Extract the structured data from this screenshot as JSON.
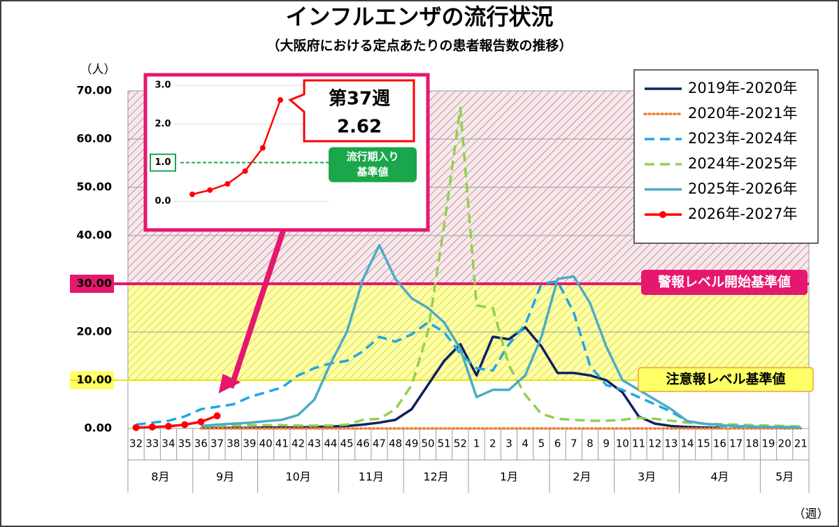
{
  "chart_data": {
    "type": "line",
    "title": "インフルエンザの流行状況",
    "subtitle": "（大阪府における定点あたりの患者報告数の推移）",
    "y_unit": "（人）",
    "x_unit": "（週）",
    "categories": [
      "32",
      "33",
      "34",
      "35",
      "36",
      "37",
      "38",
      "39",
      "40",
      "41",
      "42",
      "43",
      "44",
      "45",
      "46",
      "47",
      "48",
      "49",
      "50",
      "51",
      "52",
      "1",
      "2",
      "3",
      "4",
      "5",
      "6",
      "7",
      "8",
      "9",
      "10",
      "11",
      "12",
      "13",
      "14",
      "15",
      "16",
      "17",
      "18",
      "19",
      "20",
      "21"
    ],
    "x_groups": [
      {
        "label": "8月",
        "count": 4
      },
      {
        "label": "9月",
        "count": 4
      },
      {
        "label": "10月",
        "count": 5
      },
      {
        "label": "11月",
        "count": 4
      },
      {
        "label": "12月",
        "count": 4
      },
      {
        "label": "1月",
        "count": 5
      },
      {
        "label": "2月",
        "count": 4
      },
      {
        "label": "3月",
        "count": 4
      },
      {
        "label": "4月",
        "count": 5
      },
      {
        "label": "5月",
        "count": 3
      }
    ],
    "ylim": [
      0,
      70
    ],
    "yticks": [
      {
        "value": 0,
        "label": "0.00"
      },
      {
        "value": 10,
        "label": "10.00"
      },
      {
        "value": 20,
        "label": "20.00"
      },
      {
        "value": 30,
        "label": "30.00"
      },
      {
        "value": 40,
        "label": "40.00"
      },
      {
        "value": 50,
        "label": "50.00"
      },
      {
        "value": 60,
        "label": "60.00"
      },
      {
        "value": 70,
        "label": "70.00"
      }
    ],
    "grid": true,
    "legend": "top-right",
    "thresholds": [
      {
        "value": 30,
        "label": "警報レベル開始基準値",
        "color": "#e6176e"
      },
      {
        "value": 10,
        "label": "注意報レベル基準値",
        "color": "#ffff66"
      }
    ],
    "series": [
      {
        "name": "2019年-2020年",
        "color": "#0f2160",
        "dash": "solid",
        "values": [
          null,
          null,
          null,
          null,
          0.1,
          0.1,
          0.1,
          0.1,
          0.2,
          0.2,
          0.2,
          0.3,
          0.4,
          0.5,
          0.8,
          1.2,
          1.8,
          4,
          9,
          14,
          17.5,
          11,
          19,
          18.5,
          21,
          17,
          11.5,
          11.5,
          11,
          10,
          7.5,
          2.5,
          1,
          0.5,
          0.3,
          0.2,
          0.1,
          null,
          null,
          null,
          null,
          null
        ]
      },
      {
        "name": "2020年-2021年",
        "color": "#ed7d31",
        "dash": "dotted",
        "values": [
          null,
          null,
          null,
          null,
          0,
          0,
          0,
          0,
          0,
          0,
          0,
          0,
          0,
          0,
          0,
          0,
          0,
          0,
          0,
          0,
          0,
          0,
          0,
          0,
          0,
          0,
          0,
          0,
          0,
          0,
          0,
          0,
          0,
          0,
          0,
          0,
          0,
          0,
          0,
          0,
          0,
          0
        ]
      },
      {
        "name": "2023年-2024年",
        "color": "#1ea7e4",
        "dash": "dashed",
        "values": [
          0.8,
          1.2,
          1.6,
          2.5,
          4,
          4.5,
          5,
          6.5,
          7.5,
          8.5,
          11,
          12.5,
          13.5,
          14,
          16,
          19,
          18,
          19.5,
          22,
          20,
          15.5,
          12.5,
          12,
          17.5,
          21.5,
          30,
          30.5,
          24,
          13,
          9,
          8,
          6.5,
          5,
          3.5,
          1.5,
          1,
          0.5,
          0.4,
          0.3,
          0.3,
          0.2,
          0.2
        ]
      },
      {
        "name": "2024年-2025年",
        "color": "#92d050",
        "dash": "dashed",
        "values": [
          null,
          null,
          null,
          null,
          0.5,
          0.5,
          0.6,
          0.7,
          0.7,
          0.7,
          0.6,
          0.6,
          0.6,
          0.8,
          1.8,
          2,
          4,
          9,
          20,
          42,
          66.5,
          25.5,
          25,
          13,
          7,
          3,
          2,
          1.8,
          1.6,
          1.6,
          1.8,
          2.2,
          2,
          1.6,
          1.2,
          1,
          0.9,
          0.8,
          0.7,
          0.6,
          0.5,
          0.4
        ]
      },
      {
        "name": "2025年-2026年",
        "color": "#4bacc6",
        "dash": "solid",
        "values": [
          null,
          null,
          null,
          null,
          0.5,
          0.8,
          1,
          1.2,
          1.5,
          1.8,
          2.8,
          6,
          13.5,
          20,
          31,
          38,
          31,
          27,
          25,
          22,
          16.5,
          6.5,
          8,
          8,
          11,
          19,
          31,
          31.5,
          26,
          17,
          10,
          8,
          6,
          4,
          1.5,
          1,
          0.7,
          0.5,
          0.4,
          0.3,
          0.3,
          0.2
        ]
      },
      {
        "name": "2026年-2027年",
        "color": "#ff0000",
        "dash": "solid",
        "marker": true,
        "values": [
          0.18,
          0.29,
          0.45,
          0.78,
          1.38,
          2.62,
          null,
          null,
          null,
          null,
          null,
          null,
          null,
          null,
          null,
          null,
          null,
          null,
          null,
          null,
          null,
          null,
          null,
          null,
          null,
          null,
          null,
          null,
          null,
          null,
          null,
          null,
          null,
          null,
          null,
          null,
          null,
          null,
          null,
          null,
          null,
          null
        ]
      }
    ],
    "inset": {
      "series_index": 5,
      "ylim": [
        0,
        3
      ],
      "yticks": [
        {
          "value": 0,
          "label": "0.0"
        },
        {
          "value": 1,
          "label": "1.0"
        },
        {
          "value": 2,
          "label": "2.0"
        },
        {
          "value": 3,
          "label": "3.0"
        }
      ],
      "threshold": {
        "value": 1,
        "label": [
          "流行期入り",
          "基準値"
        ],
        "color": "#1aa64a"
      },
      "callout": {
        "label": "第37週",
        "index": 5
      }
    }
  }
}
